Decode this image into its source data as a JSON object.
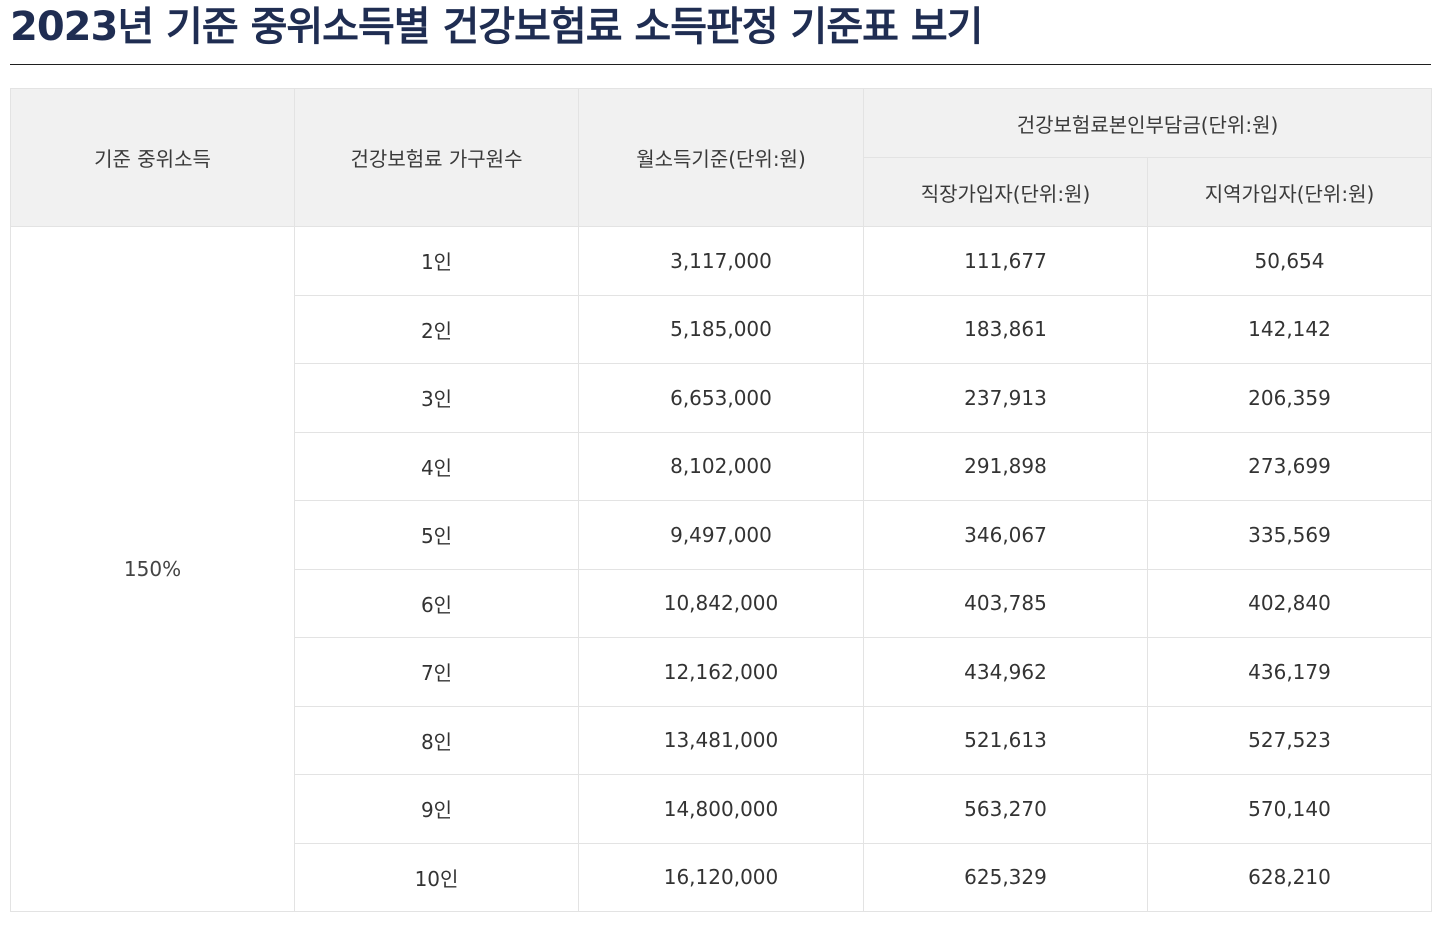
{
  "page": {
    "title": "2023년 기준 중위소득별 건강보험료 소득판정 기준표 보기"
  },
  "table": {
    "headers": {
      "median_income": "기준 중위소득",
      "household_size": "건강보험료 가구원수",
      "monthly_income": "월소득기준(단위:원)",
      "premium_group": "건강보험료본인부담금(단위:원)",
      "employee": "직장가입자(단위:원)",
      "regional": "지역가입자(단위:원)"
    },
    "median_value": "150%",
    "rows": [
      {
        "household": "1인",
        "monthly": "3,117,000",
        "employee": "111,677",
        "regional": "50,654"
      },
      {
        "household": "2인",
        "monthly": "5,185,000",
        "employee": "183,861",
        "regional": "142,142"
      },
      {
        "household": "3인",
        "monthly": "6,653,000",
        "employee": "237,913",
        "regional": "206,359"
      },
      {
        "household": "4인",
        "monthly": "8,102,000",
        "employee": "291,898",
        "regional": "273,699"
      },
      {
        "household": "5인",
        "monthly": "9,497,000",
        "employee": "346,067",
        "regional": "335,569"
      },
      {
        "household": "6인",
        "monthly": "10,842,000",
        "employee": "403,785",
        "regional": "402,840"
      },
      {
        "household": "7인",
        "monthly": "12,162,000",
        "employee": "434,962",
        "regional": "436,179"
      },
      {
        "household": "8인",
        "monthly": "13,481,000",
        "employee": "521,613",
        "regional": "527,523"
      },
      {
        "household": "9인",
        "monthly": "14,800,000",
        "employee": "563,270",
        "regional": "570,140"
      },
      {
        "household": "10인",
        "monthly": "16,120,000",
        "employee": "625,329",
        "regional": "628,210"
      }
    ]
  }
}
